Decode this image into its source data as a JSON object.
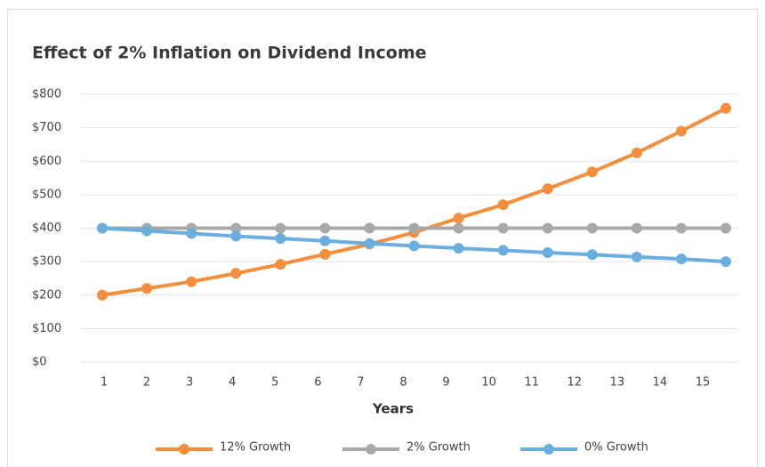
{
  "chart_data": {
    "type": "line",
    "title": "Effect of 2% Inflation on Dividend Income",
    "x_label": "Years",
    "categories": [
      "1",
      "2",
      "3",
      "4",
      "5",
      "6",
      "7",
      "8",
      "9",
      "10",
      "11",
      "12",
      "13",
      "14",
      "15"
    ],
    "series": [
      {
        "name": "12% Growth",
        "color": "#f28e3c",
        "values": [
          200,
          220,
          240,
          265,
          292,
          322,
          352,
          387,
          430,
          470,
          518,
          568,
          625,
          690,
          758
        ]
      },
      {
        "name": "2% Growth",
        "color": "#a9a9a9",
        "values": [
          400,
          400,
          400,
          400,
          400,
          400,
          400,
          400,
          400,
          400,
          400,
          400,
          400,
          400,
          400
        ]
      },
      {
        "name": "0% Growth",
        "color": "#6aaee0",
        "values": [
          400,
          392,
          384,
          376,
          369,
          362,
          354,
          347,
          340,
          334,
          327,
          321,
          314,
          308,
          300
        ]
      }
    ],
    "ylim": [
      0,
      800
    ],
    "yticks": [
      {
        "value": 0,
        "label": "$0"
      },
      {
        "value": 100,
        "label": "$100"
      },
      {
        "value": 200,
        "label": "$200"
      },
      {
        "value": 300,
        "label": "$300"
      },
      {
        "value": 400,
        "label": "$400"
      },
      {
        "value": 500,
        "label": "$500"
      },
      {
        "value": 600,
        "label": "$600"
      },
      {
        "value": 700,
        "label": "$700"
      },
      {
        "value": 800,
        "label": "$800"
      }
    ],
    "grid": true,
    "legend": "bottom"
  }
}
